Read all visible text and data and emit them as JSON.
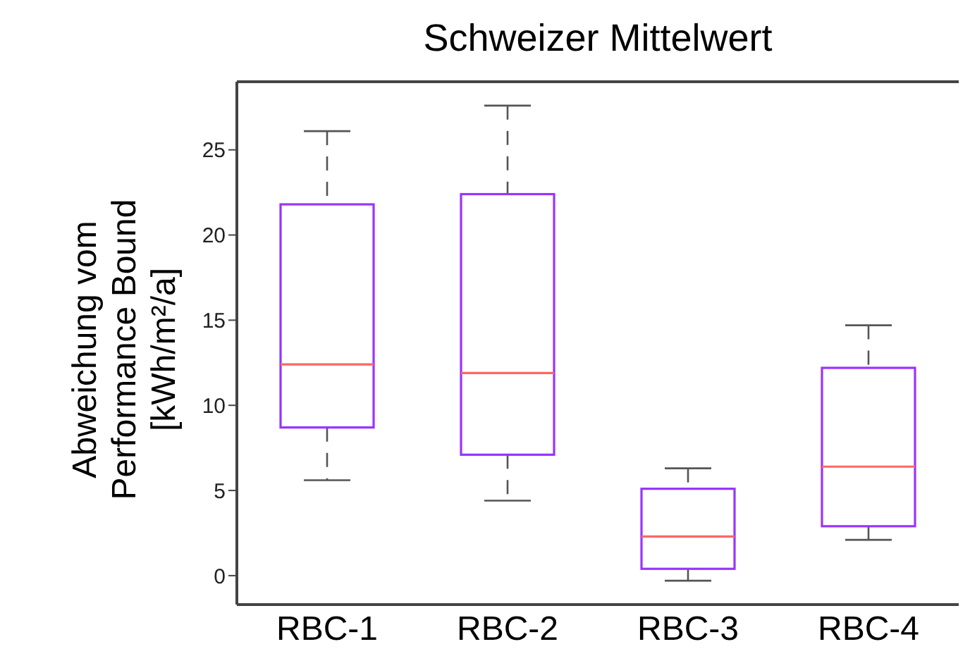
{
  "chart_data": {
    "type": "box",
    "title": "Schweizer Mittelwert",
    "ylabel": "Abweichung vom\nPerformance Bound\n[kWh/m²/a]",
    "categories": [
      "RBC-1",
      "RBC-2",
      "RBC-3",
      "RBC-4"
    ],
    "color": "#9933ff",
    "boxes": [
      {
        "low": 5.6,
        "q1": 8.7,
        "median": 12.4,
        "q3": 21.8,
        "high": 26.1
      },
      {
        "low": 4.4,
        "q1": 7.1,
        "median": 11.9,
        "q3": 22.4,
        "high": 27.6
      },
      {
        "low": -0.3,
        "q1": 0.4,
        "median": 2.3,
        "q3": 5.1,
        "high": 6.3
      },
      {
        "low": 2.1,
        "q1": 2.9,
        "median": 6.4,
        "q3": 12.2,
        "high": 14.7
      }
    ],
    "ylim": [
      -1.7,
      29
    ],
    "yticks": [
      0,
      5,
      10,
      15,
      20,
      25
    ]
  }
}
